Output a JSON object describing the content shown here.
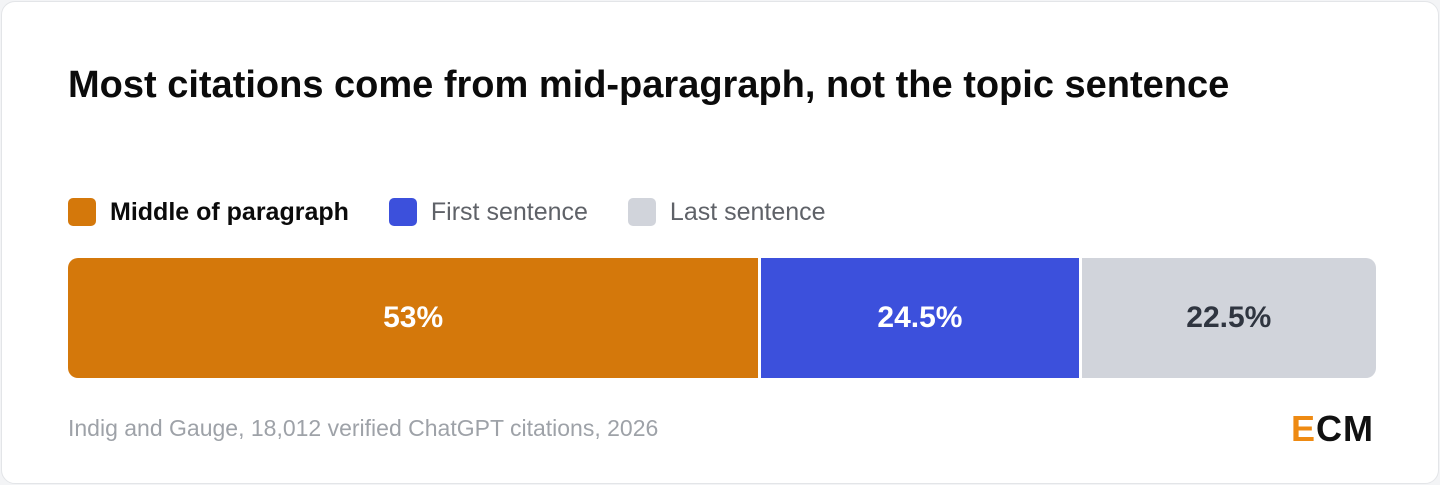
{
  "chart_data": {
    "type": "stacked-bar-100",
    "title": "Most citations come from mid-paragraph, not the topic sentence",
    "series": [
      {
        "name": "Middle of paragraph",
        "color": "#d4780b",
        "values": [
          53
        ],
        "value_labels": [
          "53%"
        ]
      },
      {
        "name": "First sentence",
        "color": "#3c50dc",
        "values": [
          24.5
        ],
        "value_labels": [
          "24.5%"
        ]
      },
      {
        "name": "Last sentence",
        "color": "#d1d4db",
        "values": [
          22.5
        ],
        "value_labels": [
          "22.5%"
        ]
      }
    ],
    "source": "Indig and Gauge, 18,012 verified ChatGPT citations, 2026",
    "logo": "ECM"
  }
}
